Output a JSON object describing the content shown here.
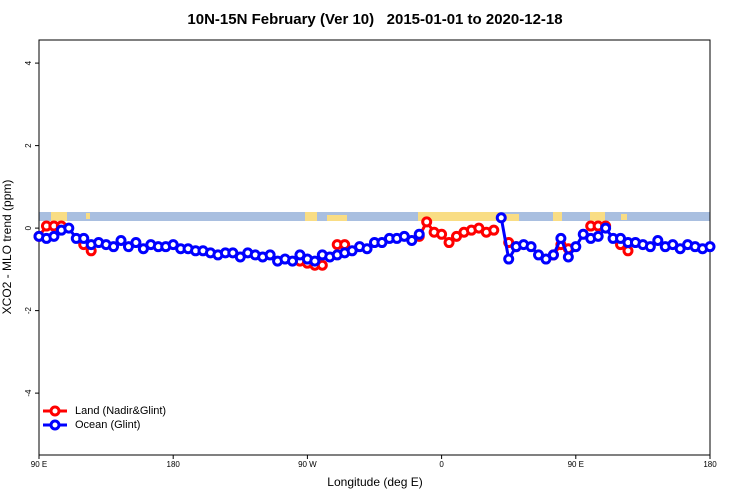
{
  "chart_data": {
    "type": "line",
    "title": "10N-15N February (Ver 10)   2015-01-01 to 2020-12-18",
    "x_label": "Longitude (deg E)",
    "y_label": "XCO2 - MLO trend (ppm)",
    "x": [
      90,
      95,
      100,
      105,
      110,
      115,
      120,
      125,
      130,
      135,
      140,
      145,
      150,
      155,
      160,
      165,
      170,
      175,
      180,
      185,
      190,
      195,
      200,
      205,
      210,
      215,
      220,
      225,
      230,
      235,
      240,
      245,
      250,
      255,
      260,
      265,
      270,
      275,
      280,
      285,
      290,
      295,
      300,
      305,
      310,
      315,
      320,
      325,
      330,
      335,
      340,
      345,
      350,
      355,
      360,
      365,
      370,
      375,
      380,
      385,
      390,
      395,
      400,
      405,
      410,
      415,
      420,
      425,
      430,
      435,
      440,
      445,
      450,
      455,
      460,
      465,
      470,
      475,
      480,
      485,
      490,
      495,
      500,
      505,
      510,
      515,
      520,
      525,
      530,
      535,
      540
    ],
    "series": [
      {
        "name": "Land (Nadir&Glint)",
        "color": "#ff0000",
        "values": [
          -0.2,
          0.05,
          0.05,
          0.05,
          null,
          null,
          -0.4,
          -0.55,
          null,
          null,
          null,
          null,
          null,
          null,
          null,
          null,
          null,
          null,
          null,
          null,
          null,
          null,
          null,
          null,
          null,
          null,
          null,
          null,
          null,
          null,
          null,
          null,
          null,
          null,
          null,
          -0.8,
          -0.85,
          -0.9,
          -0.9,
          null,
          -0.4,
          -0.4,
          null,
          null,
          null,
          null,
          null,
          null,
          null,
          null,
          null,
          -0.2,
          0.15,
          -0.1,
          -0.15,
          -0.35,
          -0.2,
          -0.1,
          -0.05,
          0.0,
          -0.1,
          -0.05,
          null,
          -0.35,
          -0.45,
          null,
          null,
          null,
          null,
          -0.65,
          -0.4,
          -0.5,
          null,
          null,
          0.05,
          0.05,
          0.05,
          null,
          -0.4,
          -0.55,
          null,
          null,
          null,
          null,
          null,
          null,
          null,
          null,
          null,
          null,
          null
        ]
      },
      {
        "name": "Ocean (Glint)",
        "color": "#0000ff",
        "values": [
          -0.2,
          -0.25,
          -0.2,
          -0.05,
          0.0,
          -0.25,
          -0.25,
          -0.4,
          -0.35,
          -0.4,
          -0.45,
          -0.3,
          -0.45,
          -0.35,
          -0.5,
          -0.4,
          -0.45,
          -0.45,
          -0.4,
          -0.5,
          -0.5,
          -0.55,
          -0.55,
          -0.6,
          -0.65,
          -0.6,
          -0.6,
          -0.7,
          -0.6,
          -0.65,
          -0.7,
          -0.65,
          -0.8,
          -0.75,
          -0.8,
          -0.65,
          -0.75,
          -0.8,
          -0.65,
          -0.7,
          -0.65,
          -0.6,
          -0.55,
          -0.45,
          -0.5,
          -0.35,
          -0.35,
          -0.25,
          -0.25,
          -0.2,
          -0.3,
          -0.15,
          null,
          null,
          null,
          null,
          null,
          null,
          null,
          null,
          null,
          null,
          0.25,
          -0.75,
          -0.45,
          -0.4,
          -0.45,
          -0.65,
          -0.75,
          -0.65,
          -0.25,
          -0.7,
          -0.45,
          -0.15,
          -0.25,
          -0.2,
          0.0,
          -0.25,
          -0.25,
          -0.35,
          -0.35,
          -0.4,
          -0.45,
          -0.3,
          -0.45,
          -0.4,
          -0.5,
          -0.4,
          -0.45,
          -0.5,
          -0.45
        ]
      }
    ],
    "xlim": [
      90,
      540
    ],
    "xticks": [
      {
        "value": 90,
        "label": "90 E"
      },
      180,
      {
        "value": 270,
        "label": "90 W"
      },
      {
        "value": 360,
        "label": "0"
      },
      {
        "value": 450,
        "label": "90 E"
      },
      {
        "value": 540,
        "label": "180"
      }
    ],
    "ylim": [
      -5.5,
      4.56
    ],
    "yticks": [
      -4,
      -2,
      0,
      2,
      4
    ],
    "legend": "bottom-left"
  }
}
